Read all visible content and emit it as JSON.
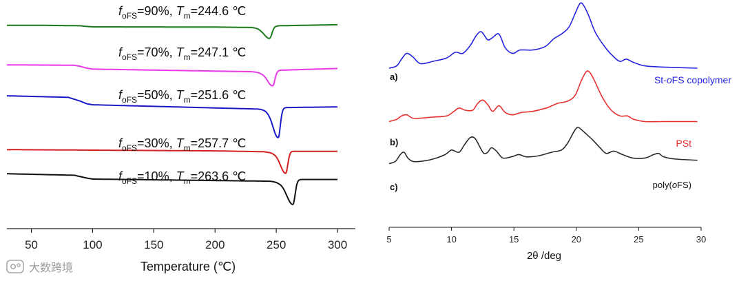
{
  "chart_data": [
    {
      "type": "line",
      "panel": "DSC thermograms",
      "xlabel": "Temperature (℃)",
      "xlim": [
        30,
        300
      ],
      "xticks": [
        50,
        100,
        150,
        200,
        250,
        300
      ],
      "ylabel": "",
      "grid": false,
      "series": [
        {
          "name": "foFS=90%",
          "color": "#1a7a1a",
          "label": {
            "f": "f",
            "f_sub": "oFS",
            "eq": "=90%, ",
            "T": "T",
            "T_sub": "m",
            "val": "=244.6 ℃"
          },
          "baseline": {
            "x": [
              30,
              60,
              90,
              95,
              100,
              200,
              230,
              238
            ],
            "y": [
              0.92,
              0.92,
              0.918,
              0.915,
              0.913,
              0.912,
              0.91,
              0.905
            ]
          },
          "peak": {
            "center": 244.6,
            "depth": 0.052,
            "left_width": 6,
            "right_width": 2.6
          },
          "tail": {
            "x": [
              252,
              300
            ],
            "y": [
              0.918,
              0.923
            ]
          }
        },
        {
          "name": "foFS=70%",
          "color": "#e838e8",
          "label": {
            "f": "f",
            "f_sub": "oFS",
            "eq": "=70%, ",
            "T": "T",
            "T_sub": "m",
            "val": "=247.1 ℃"
          },
          "baseline": {
            "x": [
              30,
              85,
              90,
              95,
              100,
              230,
              238
            ],
            "y": [
              0.735,
              0.733,
              0.728,
              0.72,
              0.715,
              0.703,
              0.698
            ]
          },
          "peak": {
            "center": 247.1,
            "depth": 0.068,
            "left_width": 6,
            "right_width": 2.5
          },
          "tail": {
            "x": [
              254,
              300
            ],
            "y": [
              0.71,
              0.718
            ]
          }
        },
        {
          "name": "foFS=50%",
          "color": "#1a1ac8",
          "label": {
            "f": "f",
            "f_sub": "oFS",
            "eq": "=50%, ",
            "T": "T",
            "T_sub": "m",
            "val": "=251.6 ℃"
          },
          "baseline": {
            "x": [
              30,
              80,
              90,
              95,
              100,
              235,
              243
            ],
            "y": [
              0.59,
              0.583,
              0.565,
              0.553,
              0.548,
              0.528,
              0.522
            ]
          },
          "peak": {
            "center": 251.6,
            "depth": 0.135,
            "left_width": 6,
            "right_width": 2.4
          },
          "tail": {
            "x": [
              258,
              300
            ],
            "y": [
              0.535,
              0.538
            ]
          }
        },
        {
          "name": "foFS=30%",
          "color": "#d42020",
          "label": {
            "f": "f",
            "f_sub": "oFS",
            "eq": "=30%, ",
            "T": "T",
            "T_sub": "m",
            "val": "=257.7 ℃"
          },
          "baseline": {
            "x": [
              30,
              200,
              240,
              248
            ],
            "y": [
              0.338,
              0.332,
              0.328,
              0.322
            ]
          },
          "peak": {
            "center": 257.7,
            "depth": 0.1,
            "left_width": 6,
            "right_width": 2.4
          },
          "tail": {
            "x": [
              264,
              300
            ],
            "y": [
              0.33,
              0.33
            ]
          }
        },
        {
          "name": "foFS=10%",
          "color": "#111111",
          "label": {
            "f": "f",
            "f_sub": "oFS",
            "eq": "=10%, ",
            "T": "T",
            "T_sub": "m",
            "val": "=263.6 ℃"
          },
          "baseline": {
            "x": [
              30,
              85,
              95,
              100,
              245,
              252
            ],
            "y": [
              0.225,
              0.218,
              0.205,
              0.2,
              0.19,
              0.185
            ]
          },
          "peak": {
            "center": 263.6,
            "depth": 0.112,
            "left_width": 7,
            "right_width": 2.5
          },
          "tail": {
            "x": [
              270,
              300
            ],
            "y": [
              0.198,
              0.198
            ]
          }
        }
      ]
    },
    {
      "type": "line",
      "panel": "XRD patterns",
      "xlabel": "2θ /deg",
      "xlim": [
        5,
        30
      ],
      "xticks": [
        5,
        10,
        15,
        20,
        25,
        30
      ],
      "grid": false,
      "series": [
        {
          "name": "St-oFS copolymer",
          "tag": "a)",
          "color": "#2323e0",
          "legend": {
            "pre": "St-",
            "ital": "o",
            "post": "FS copolymer"
          },
          "x": [
            5.0,
            5.6,
            6.0,
            6.4,
            6.9,
            7.5,
            8.5,
            9.6,
            10.3,
            10.9,
            11.5,
            12.0,
            12.4,
            12.9,
            13.3,
            13.8,
            14.3,
            14.9,
            15.5,
            16.5,
            17.5,
            18.2,
            18.8,
            19.4,
            19.9,
            20.3,
            20.6,
            21.0,
            21.5,
            22.2,
            22.9,
            23.5,
            24.0,
            24.6,
            25.5,
            27.0,
            29.7
          ],
          "y": [
            0.7,
            0.71,
            0.74,
            0.765,
            0.75,
            0.72,
            0.73,
            0.745,
            0.77,
            0.765,
            0.8,
            0.845,
            0.86,
            0.825,
            0.835,
            0.85,
            0.79,
            0.765,
            0.78,
            0.78,
            0.795,
            0.83,
            0.85,
            0.88,
            0.94,
            0.985,
            0.975,
            0.93,
            0.86,
            0.8,
            0.755,
            0.73,
            0.74,
            0.725,
            0.71,
            0.705,
            0.7
          ]
        },
        {
          "name": "PSt",
          "tag": "b)",
          "color": "#e83030",
          "legend": {
            "pre": "PSt",
            "ital": "",
            "post": ""
          },
          "x": [
            5.0,
            5.6,
            6.0,
            6.4,
            6.9,
            7.5,
            8.5,
            9.6,
            10.2,
            10.6,
            11.1,
            11.7,
            12.1,
            12.5,
            12.9,
            13.3,
            13.8,
            14.3,
            14.9,
            15.6,
            16.5,
            17.6,
            18.5,
            19.3,
            19.9,
            20.4,
            20.8,
            21.1,
            21.5,
            22.1,
            22.8,
            23.5,
            24.1,
            24.6,
            25.5,
            27.0,
            29.7
          ],
          "y": [
            0.465,
            0.475,
            0.49,
            0.495,
            0.48,
            0.48,
            0.485,
            0.49,
            0.51,
            0.525,
            0.515,
            0.515,
            0.545,
            0.56,
            0.54,
            0.51,
            0.535,
            0.505,
            0.495,
            0.505,
            0.51,
            0.525,
            0.545,
            0.555,
            0.58,
            0.645,
            0.685,
            0.68,
            0.64,
            0.57,
            0.515,
            0.49,
            0.49,
            0.475,
            0.465,
            0.465,
            0.465
          ]
        },
        {
          "name": "poly(oFS)",
          "tag": "c)",
          "color": "#2a2a2a",
          "legend": {
            "pre": "poly(",
            "ital": "o",
            "post": "FS)"
          },
          "x": [
            5.0,
            5.5,
            5.9,
            6.2,
            6.5,
            6.9,
            7.5,
            8.5,
            9.5,
            10.0,
            10.6,
            11.0,
            11.5,
            11.9,
            12.3,
            12.6,
            12.9,
            13.2,
            13.6,
            14.1,
            14.8,
            15.4,
            16.0,
            17.0,
            18.0,
            18.8,
            19.3,
            19.8,
            20.1,
            20.4,
            20.8,
            21.3,
            21.9,
            22.4,
            23.0,
            23.7,
            24.5,
            25.5,
            26.2,
            26.6,
            27.0,
            28.0,
            29.7
          ],
          "y": [
            0.28,
            0.29,
            0.32,
            0.33,
            0.305,
            0.29,
            0.29,
            0.3,
            0.32,
            0.34,
            0.33,
            0.36,
            0.395,
            0.39,
            0.35,
            0.325,
            0.33,
            0.35,
            0.335,
            0.305,
            0.31,
            0.32,
            0.31,
            0.315,
            0.33,
            0.34,
            0.37,
            0.42,
            0.44,
            0.43,
            0.41,
            0.385,
            0.35,
            0.325,
            0.335,
            0.32,
            0.305,
            0.305,
            0.32,
            0.325,
            0.31,
            0.3,
            0.295
          ]
        }
      ]
    }
  ],
  "watermark": {
    "text": "大数跨境",
    "icon": "camera-logo-icon"
  }
}
